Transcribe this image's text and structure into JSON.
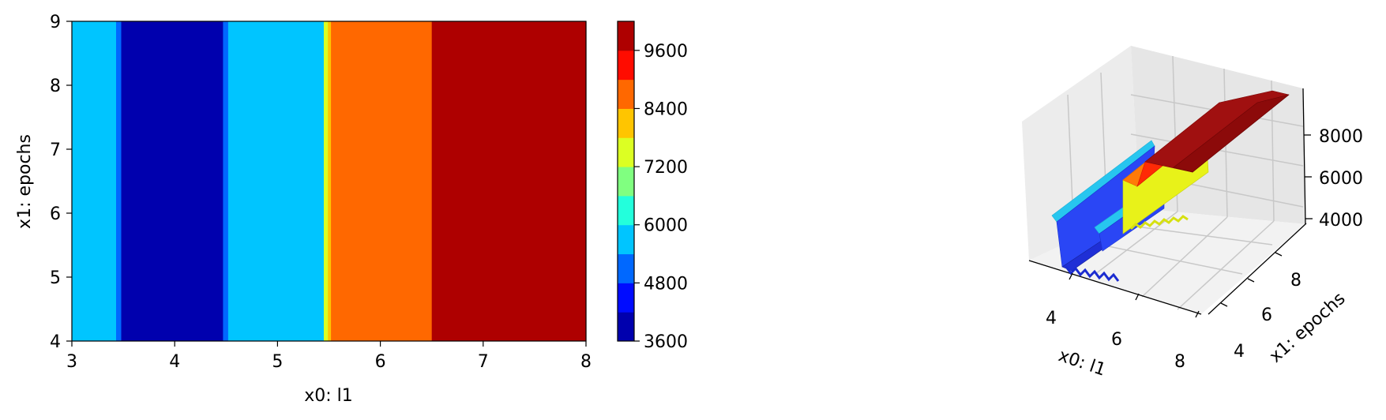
{
  "chart_data": [
    {
      "type": "heatmap",
      "subtype": "filled-contour",
      "xlabel": "x0: l1",
      "ylabel": "x1: epochs",
      "xlim": [
        3,
        8
      ],
      "ylim": [
        4,
        9
      ],
      "xticks": [
        "3",
        "4",
        "5",
        "6",
        "7",
        "8"
      ],
      "yticks": [
        "4",
        "5",
        "6",
        "7",
        "8",
        "9"
      ],
      "colormap": "jet",
      "color_levels": [
        3600,
        4200,
        4800,
        5400,
        6000,
        6600,
        7200,
        7800,
        8400,
        9000,
        9600,
        10200
      ],
      "colorbar_ticks": [
        "3600",
        "4800",
        "6000",
        "7200",
        "8400",
        "9600"
      ],
      "bands": [
        {
          "x0": 3.0,
          "x1": 3.43,
          "value": 5800
        },
        {
          "x0": 3.43,
          "x1": 3.48,
          "value": 5000
        },
        {
          "x0": 3.48,
          "x1": 4.47,
          "value": 3700
        },
        {
          "x0": 4.47,
          "x1": 4.52,
          "value": 5000
        },
        {
          "x0": 4.52,
          "x1": 5.45,
          "value": 5800
        },
        {
          "x0": 5.45,
          "x1": 5.49,
          "value": 7400
        },
        {
          "x0": 5.49,
          "x1": 5.52,
          "value": 8300
        },
        {
          "x0": 5.52,
          "x1": 6.5,
          "value": 8800
        },
        {
          "x0": 6.5,
          "x1": 6.57,
          "value": 9800
        },
        {
          "x0": 6.57,
          "x1": 8.0,
          "value": 10100
        }
      ]
    },
    {
      "type": "surface3d",
      "xlabel": "x0: l1",
      "ylabel": "x1: epochs",
      "xticks": [
        "4",
        "6",
        "8"
      ],
      "yticks": [
        "4",
        "6",
        "8"
      ],
      "zticks": [
        "4000",
        "6000",
        "8000"
      ],
      "zlim": [
        3600,
        10200
      ],
      "note_steps": [
        {
          "x0": 3.0,
          "x1": 3.5,
          "value": 5800
        },
        {
          "x0": 3.5,
          "x1": 4.5,
          "value": 3700
        },
        {
          "x0": 4.5,
          "x1": 5.5,
          "value": 5800
        },
        {
          "x0": 5.5,
          "x1": 6.5,
          "value": 8800
        },
        {
          "x0": 6.5,
          "x1": 8.0,
          "value": 10100
        }
      ]
    }
  ]
}
